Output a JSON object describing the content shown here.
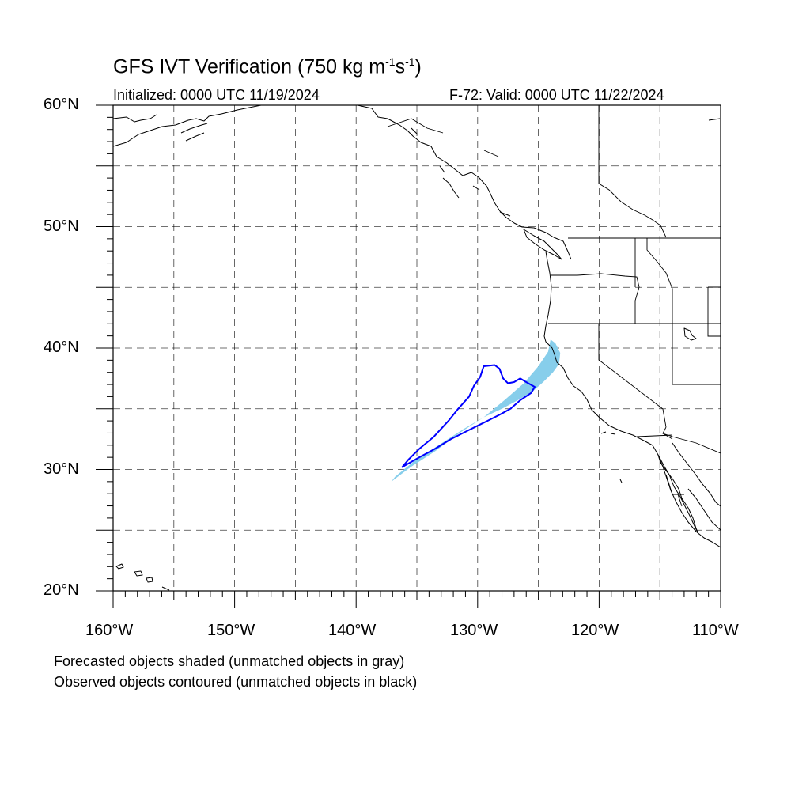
{
  "title": {
    "main": "GFS IVT Verification (750 kg m",
    "exp1": "-1",
    "unit_s": "s",
    "exp2": "-1",
    "close": ")"
  },
  "subtitle": {
    "init": "Initialized: 0000 UTC 11/19/2024",
    "valid": "F-72: Valid: 0000 UTC 11/22/2024"
  },
  "lat_labels": [
    "60°N",
    "50°N",
    "40°N",
    "30°N",
    "20°N"
  ],
  "lon_labels": [
    "160°W",
    "150°W",
    "140°W",
    "130°W",
    "120°W",
    "110°W"
  ],
  "footnotes": [
    "Forecasted objects shaded (unmatched objects in gray)",
    "Observed objects contoured (unmatched objects in black)"
  ],
  "colors": {
    "forecast_fill": "#87CEEB",
    "observed_contour": "#0000FF",
    "grid": "#000000",
    "coastline": "#000000"
  },
  "map": {
    "projection": "cylindrical equidistant",
    "lon_range": [
      -160,
      -110
    ],
    "lat_range": [
      20,
      60
    ],
    "grid_spacing_deg": 5,
    "grid_style": "dashed"
  },
  "objects": {
    "forecast": {
      "label": "forecast IVT object (matched)",
      "outline_lonlat": [
        [
          -137.1,
          29.0
        ],
        [
          -135.5,
          30.2
        ],
        [
          -133.5,
          31.5
        ],
        [
          -131.5,
          33.0
        ],
        [
          -129.5,
          34.3
        ],
        [
          -127.8,
          35.7
        ],
        [
          -126.2,
          37.1
        ],
        [
          -125.0,
          38.5
        ],
        [
          -124.2,
          39.7
        ],
        [
          -124.0,
          40.7
        ],
        [
          -123.6,
          40.4
        ],
        [
          -123.2,
          39.6
        ],
        [
          -123.3,
          38.7
        ],
        [
          -123.8,
          38.0
        ],
        [
          -124.6,
          37.2
        ],
        [
          -125.5,
          36.4
        ],
        [
          -126.7,
          35.7
        ],
        [
          -128.0,
          35.0
        ],
        [
          -129.5,
          34.3
        ],
        [
          -131.2,
          33.3
        ],
        [
          -133.2,
          32.0
        ],
        [
          -135.2,
          30.7
        ],
        [
          -136.8,
          29.4
        ]
      ]
    },
    "observed": {
      "label": "observed IVT object (matched)",
      "outline_lonlat": [
        [
          -136.2,
          30.2
        ],
        [
          -135.7,
          30.8
        ],
        [
          -134.8,
          31.7
        ],
        [
          -133.6,
          32.7
        ],
        [
          -132.4,
          34.0
        ],
        [
          -131.6,
          35.0
        ],
        [
          -130.7,
          36.0
        ],
        [
          -130.3,
          36.9
        ],
        [
          -129.8,
          37.6
        ],
        [
          -129.5,
          38.5
        ],
        [
          -128.6,
          38.6
        ],
        [
          -128.2,
          38.3
        ],
        [
          -127.9,
          37.5
        ],
        [
          -127.5,
          37.1
        ],
        [
          -127.0,
          37.2
        ],
        [
          -126.5,
          37.5
        ],
        [
          -126.0,
          37.2
        ],
        [
          -125.3,
          36.8
        ],
        [
          -125.6,
          36.3
        ],
        [
          -126.5,
          35.7
        ],
        [
          -127.3,
          35.0
        ],
        [
          -128.2,
          34.5
        ],
        [
          -129.2,
          34.0
        ],
        [
          -130.0,
          33.6
        ],
        [
          -131.0,
          33.1
        ],
        [
          -132.2,
          32.5
        ],
        [
          -133.5,
          31.7
        ],
        [
          -134.8,
          31.0
        ]
      ]
    }
  }
}
